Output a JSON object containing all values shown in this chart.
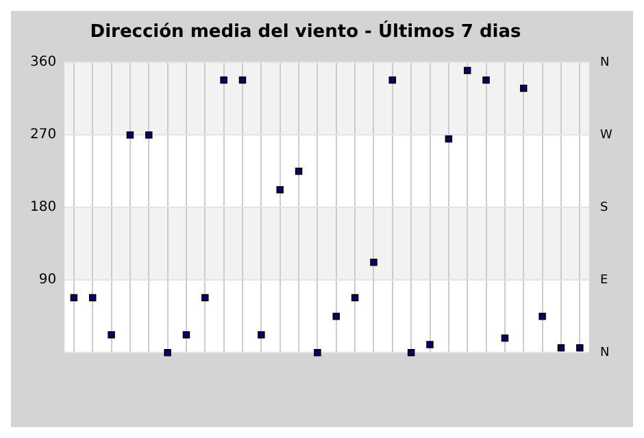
{
  "chart_data": {
    "type": "scatter",
    "title": "Dirección media del viento - Últimos 7 dias",
    "categories": [
      null,
      null,
      null,
      null,
      null,
      null,
      null,
      null,
      null,
      null,
      null,
      null,
      null,
      null,
      null,
      null,
      null,
      null,
      null,
      null,
      null,
      null,
      null,
      null,
      null,
      null,
      null,
      null
    ],
    "series": [
      {
        "color": "#000080",
        "values": [
          68,
          68,
          22,
          270,
          270,
          0,
          22,
          68,
          338,
          338,
          22,
          202,
          225,
          0,
          45,
          68,
          112,
          338,
          0,
          10,
          265,
          350,
          338,
          18,
          328,
          45,
          6,
          6
        ]
      }
    ],
    "ylim": [
      0,
      360
    ],
    "yticks": [
      {
        "value": 0,
        "label": null
      },
      90,
      180,
      270,
      360
    ],
    "annotations": [
      "N",
      "W",
      "S",
      "E",
      "N"
    ],
    "grid": true,
    "legend": false,
    "marker": "square"
  }
}
